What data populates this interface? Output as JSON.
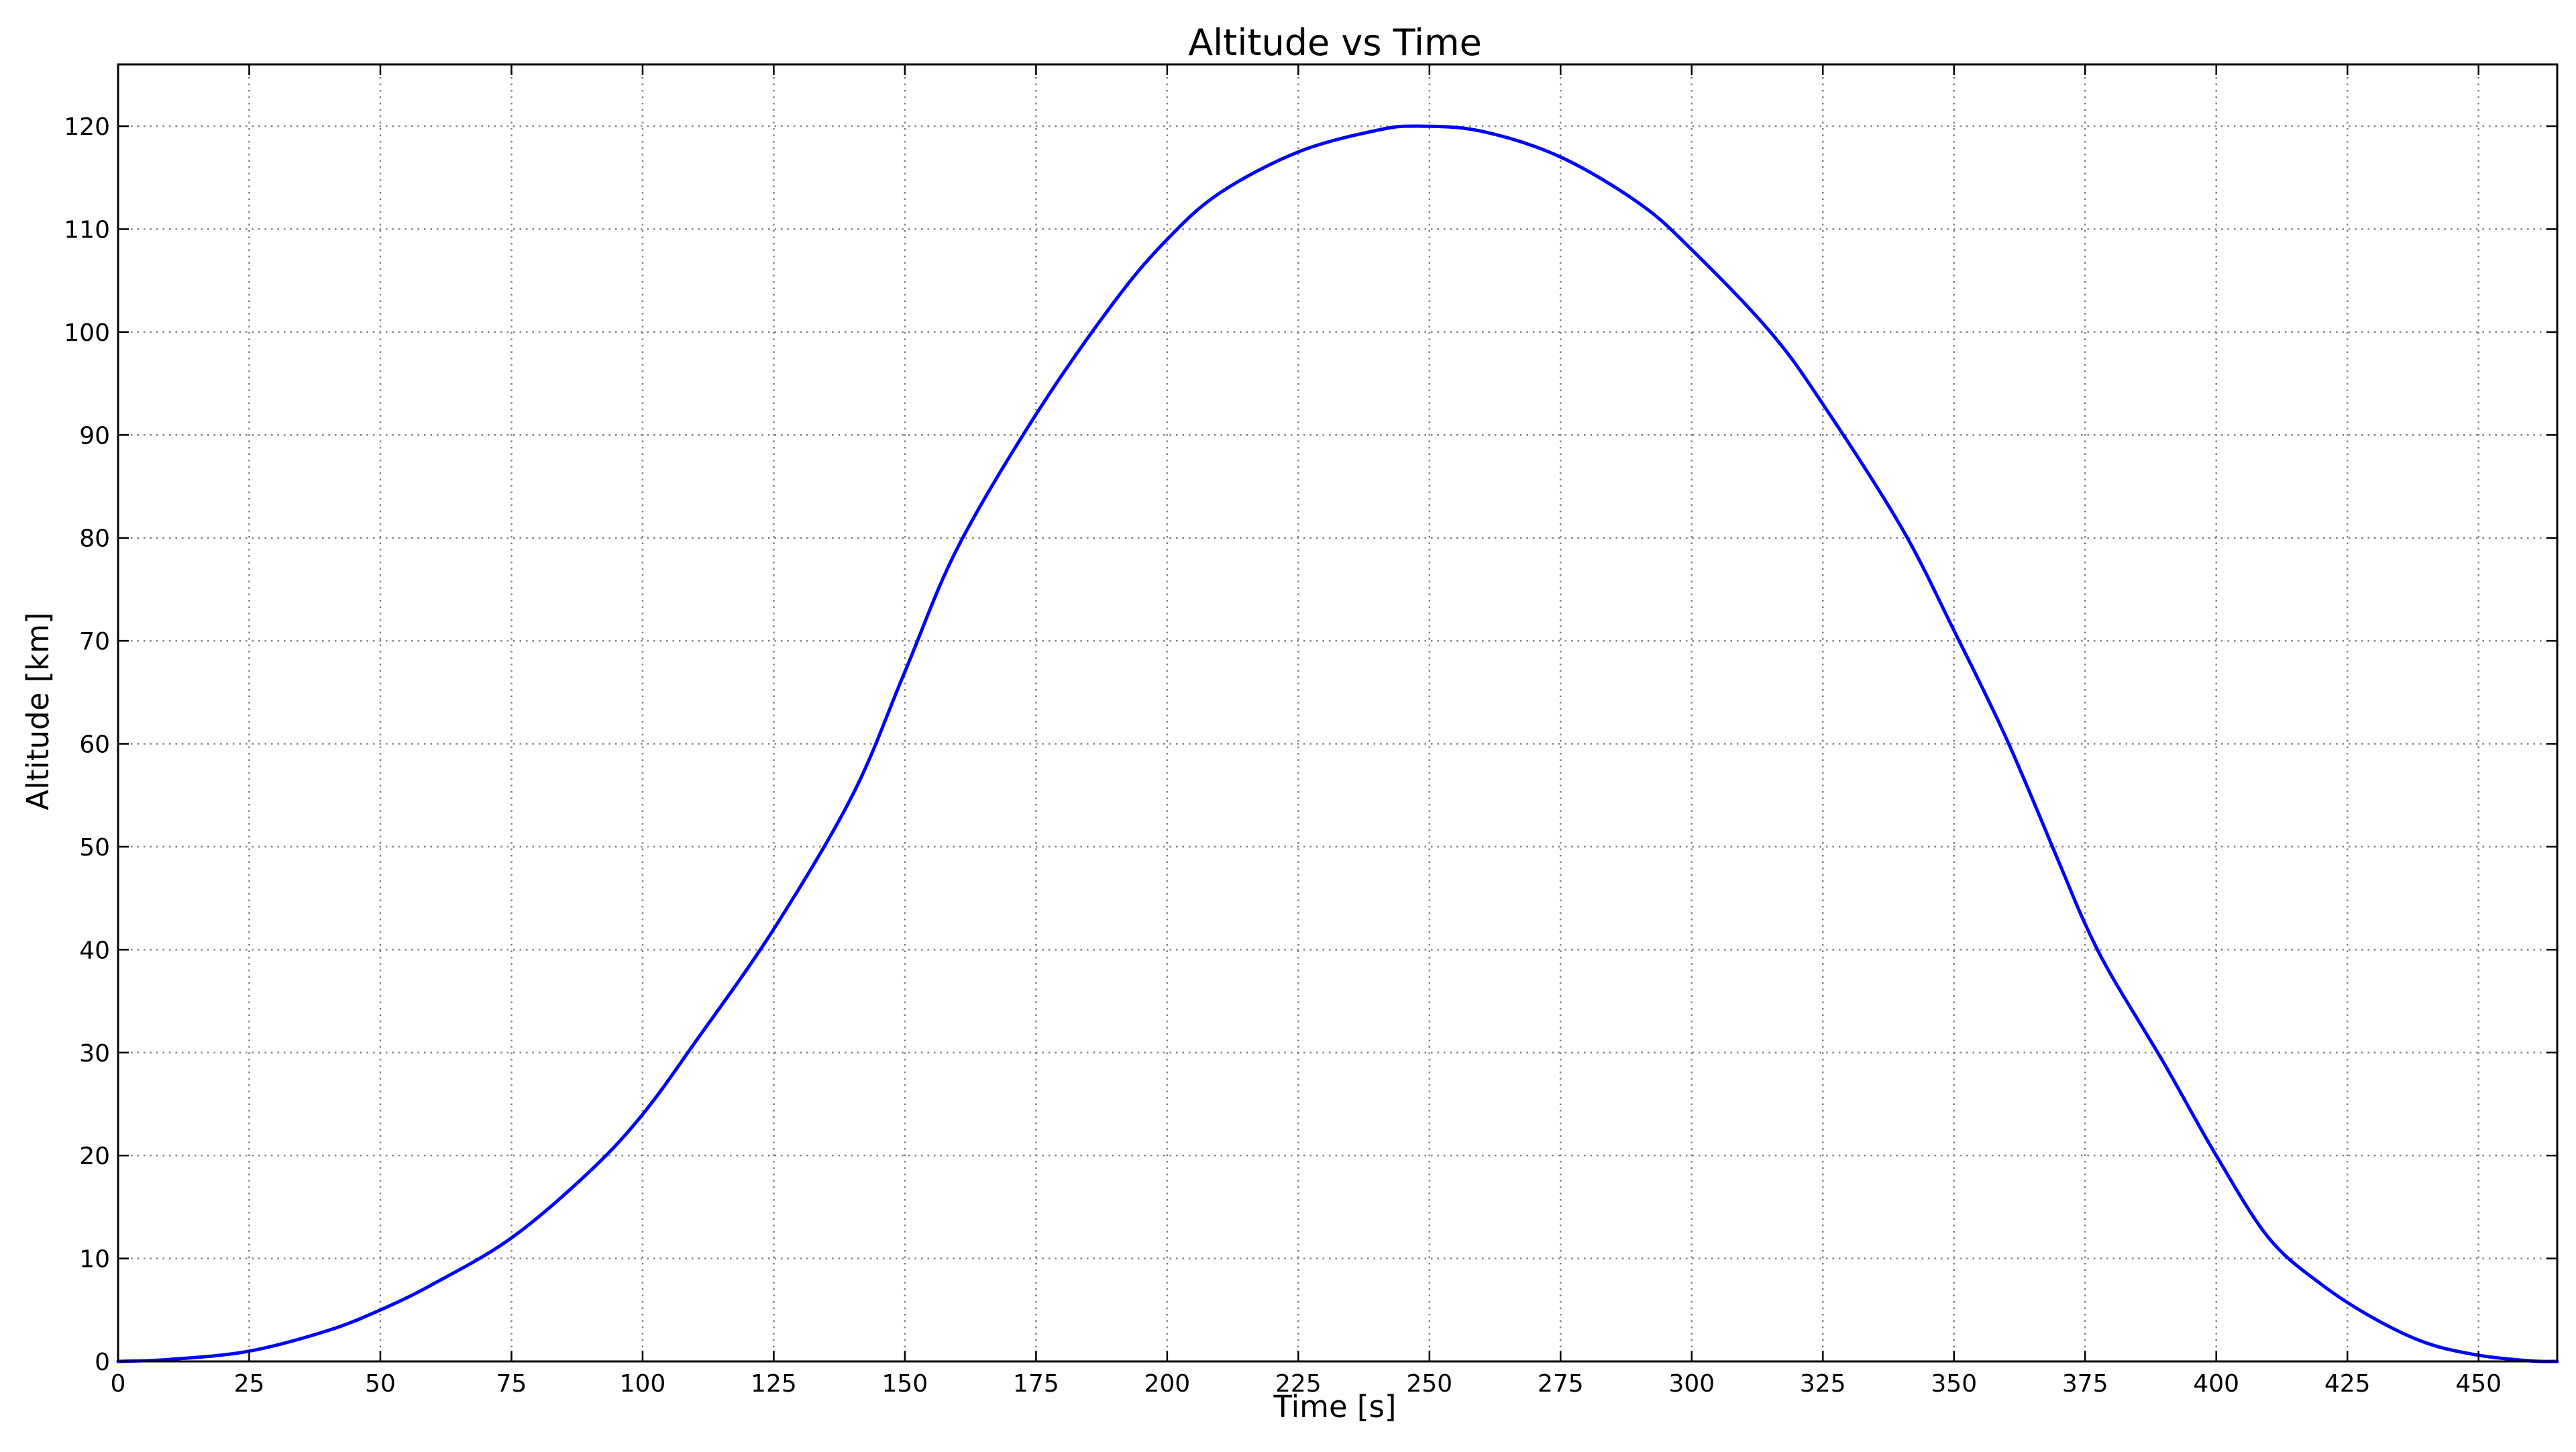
{
  "colors": {
    "line": "#0000ff",
    "grid": "#808080",
    "axes": "#000000",
    "background": "#ffffff"
  },
  "chart_data": {
    "type": "line",
    "title": "Altitude vs Time",
    "xlabel": "Time [s]",
    "ylabel": "Altitude [km]",
    "xlim": [
      0,
      465
    ],
    "ylim": [
      0,
      126
    ],
    "x_ticks": [
      0,
      25,
      50,
      75,
      100,
      125,
      150,
      175,
      200,
      225,
      250,
      275,
      300,
      325,
      350,
      375,
      400,
      425,
      450
    ],
    "x_tick_labels": [
      "0",
      "25",
      "50",
      "75",
      "100",
      "125",
      "150",
      "175",
      "200",
      "225",
      "250",
      "275",
      "300",
      "325",
      "350",
      "375",
      "400",
      "425",
      "450"
    ],
    "y_ticks": [
      0,
      10,
      20,
      30,
      40,
      50,
      60,
      70,
      80,
      90,
      100,
      110,
      120
    ],
    "y_tick_labels": [
      "0",
      "10",
      "20",
      "30",
      "40",
      "50",
      "60",
      "70",
      "80",
      "90",
      "100",
      "110",
      "120"
    ],
    "grid": true,
    "grid_style": "dotted",
    "legend": false,
    "series": [
      {
        "color": "#0000ff",
        "x": [
          0,
          10,
          25,
          40,
          50,
          60,
          75,
          90,
          100,
          110,
          125,
          140,
          150,
          160,
          175,
          190,
          200,
          210,
          225,
          240,
          248,
          260,
          275,
          290,
          300,
          315,
          325,
          340,
          350,
          360,
          370,
          375,
          380,
          390,
          400,
          410,
          420,
          430,
          440,
          450,
          460,
          465
        ],
        "y": [
          0,
          0.2,
          1.0,
          3.0,
          5.0,
          7.5,
          12.0,
          18.5,
          24.0,
          31.0,
          42.0,
          55.0,
          67.0,
          79.0,
          92.0,
          103.0,
          109.0,
          113.5,
          117.5,
          119.6,
          120.0,
          119.5,
          117.0,
          112.5,
          108.0,
          100.0,
          93.0,
          81.0,
          71.0,
          60.5,
          48.5,
          42.5,
          37.5,
          29.0,
          20.0,
          12.0,
          7.5,
          4.2,
          1.8,
          0.6,
          0.05,
          0.0
        ]
      }
    ]
  }
}
